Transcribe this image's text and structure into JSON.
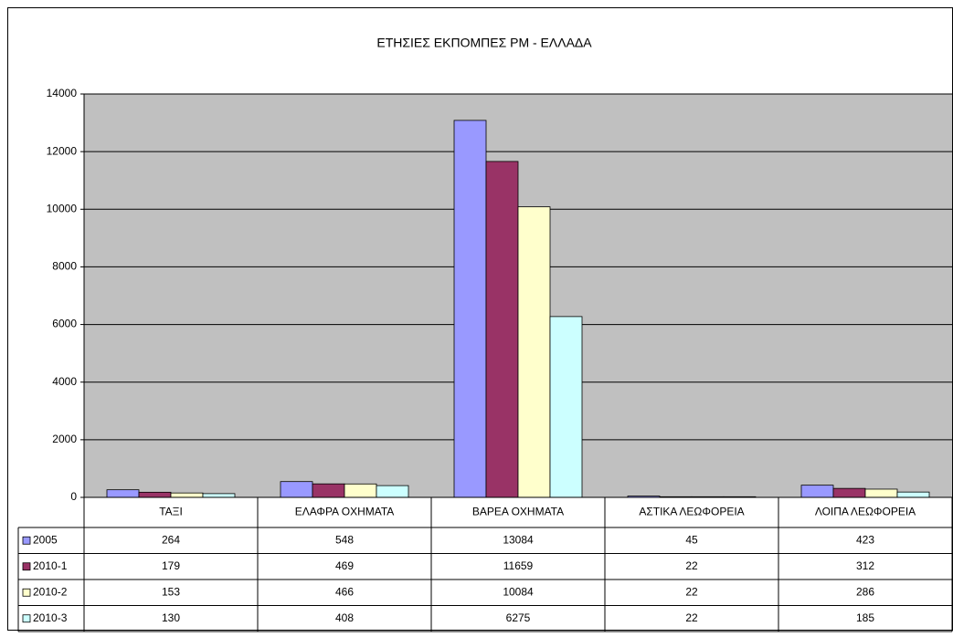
{
  "chart_data": {
    "type": "bar",
    "title": "ΕΤΗΣΙΕΣ ΕΚΠΟΜΠΕΣ PM - ΕΛΛΑΔΑ",
    "categories": [
      "ΤΑΞΙ",
      "ΕΛΑΦΡΑ ΟΧΗΜΑΤΑ",
      "ΒΑΡΕΑ ΟΧΗΜΑΤΑ",
      "ΑΣΤΙΚΑ ΛΕΩΦΟΡΕΙΑ",
      "ΛΟΙΠΑ ΛΕΩΦΟΡΕΙΑ"
    ],
    "series": [
      {
        "name": "2005",
        "color": "#9999ff",
        "values": [
          264,
          548,
          13084,
          45,
          423
        ]
      },
      {
        "name": "2010-1",
        "color": "#993366",
        "values": [
          179,
          469,
          11659,
          22,
          312
        ]
      },
      {
        "name": "2010-2",
        "color": "#ffffcc",
        "values": [
          153,
          466,
          10084,
          22,
          286
        ]
      },
      {
        "name": "2010-3",
        "color": "#ccffff",
        "values": [
          130,
          408,
          6275,
          22,
          185
        ]
      }
    ],
    "ylim": [
      0,
      14000
    ],
    "yticks": [
      0,
      2000,
      4000,
      6000,
      8000,
      10000,
      12000,
      14000
    ],
    "grid": true,
    "plot_background": "#c0c0c0"
  }
}
